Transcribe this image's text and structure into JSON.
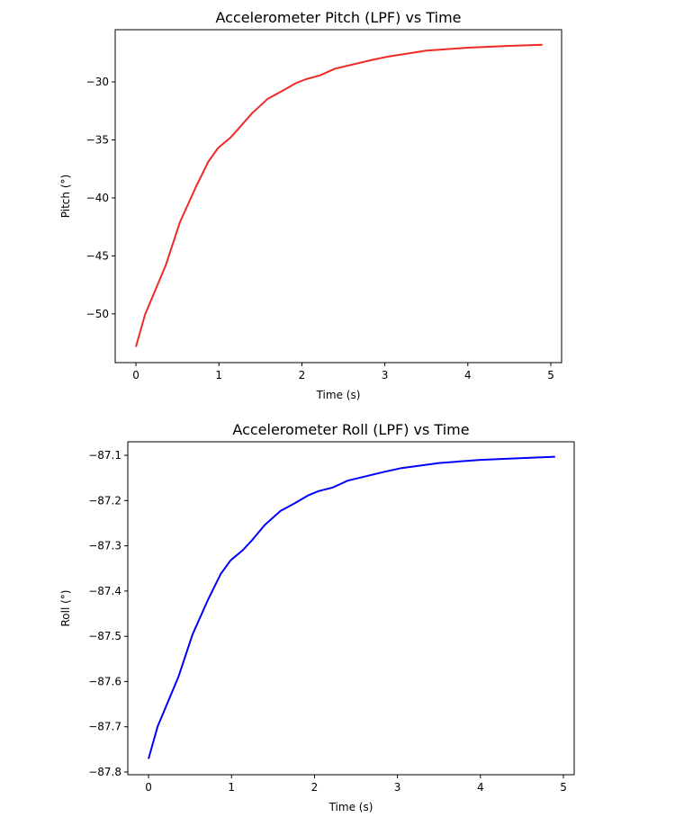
{
  "chart_data": [
    {
      "type": "line",
      "title": "Accelerometer Pitch (LPF) vs Time",
      "xlabel": "Time (s)",
      "ylabel": "Pitch (°)",
      "xlim": [
        -0.25,
        5.13
      ],
      "ylim": [
        -54.2,
        -25.5
      ],
      "xticks": [
        0,
        1,
        2,
        3,
        4,
        5
      ],
      "xtick_labels": [
        "0",
        "1",
        "2",
        "3",
        "4",
        "5"
      ],
      "yticks": [
        -30,
        -35,
        -40,
        -45,
        -50
      ],
      "ytick_labels": [
        "−30",
        "−35",
        "−40",
        "−45",
        "−50"
      ],
      "grid": false,
      "color": "#ee2a24",
      "series": [
        {
          "name": "Pitch",
          "x": [
            0,
            0.11,
            0.36,
            0.53,
            0.72,
            0.87,
            0.99,
            1.14,
            1.24,
            1.4,
            1.59,
            1.76,
            1.93,
            2.05,
            2.22,
            2.4,
            2.85,
            3.05,
            3.5,
            4.0,
            4.5,
            4.9
          ],
          "y": [
            -52.84,
            -50.05,
            -45.8,
            -42.1,
            -39.1,
            -36.9,
            -35.7,
            -34.8,
            -34.0,
            -32.7,
            -31.45,
            -30.8,
            -30.1,
            -29.77,
            -29.43,
            -28.86,
            -28.1,
            -27.8,
            -27.3,
            -27.05,
            -26.9,
            -26.8
          ]
        }
      ]
    },
    {
      "type": "line",
      "title": "Accelerometer Roll (LPF) vs Time",
      "xlabel": "Time (s)",
      "ylabel": "Roll (°)",
      "xlim": [
        -0.25,
        5.13
      ],
      "ylim": [
        -87.806,
        -87.07
      ],
      "xticks": [
        0,
        1,
        2,
        3,
        4,
        5
      ],
      "xtick_labels": [
        "0",
        "1",
        "2",
        "3",
        "4",
        "5"
      ],
      "yticks": [
        -87.1,
        -87.2,
        -87.3,
        -87.4,
        -87.5,
        -87.6,
        -87.7,
        -87.8
      ],
      "ytick_labels": [
        "−87.1",
        "−87.2",
        "−87.3",
        "−87.4",
        "−87.5",
        "−87.6",
        "−87.7",
        "−87.8"
      ],
      "grid": false,
      "color": "#0000ff",
      "series": [
        {
          "name": "Roll",
          "x": [
            0,
            0.11,
            0.36,
            0.53,
            0.72,
            0.87,
            0.99,
            1.14,
            1.24,
            1.4,
            1.59,
            1.76,
            1.93,
            2.05,
            2.22,
            2.4,
            2.85,
            3.05,
            3.5,
            4.0,
            4.5,
            4.9
          ],
          "y": [
            -87.771,
            -87.699,
            -87.59,
            -87.496,
            -87.418,
            -87.362,
            -87.332,
            -87.309,
            -87.289,
            -87.254,
            -87.223,
            -87.206,
            -87.188,
            -87.179,
            -87.171,
            -87.156,
            -87.136,
            -87.128,
            -87.117,
            -87.11,
            -87.106,
            -87.103
          ]
        }
      ]
    }
  ]
}
